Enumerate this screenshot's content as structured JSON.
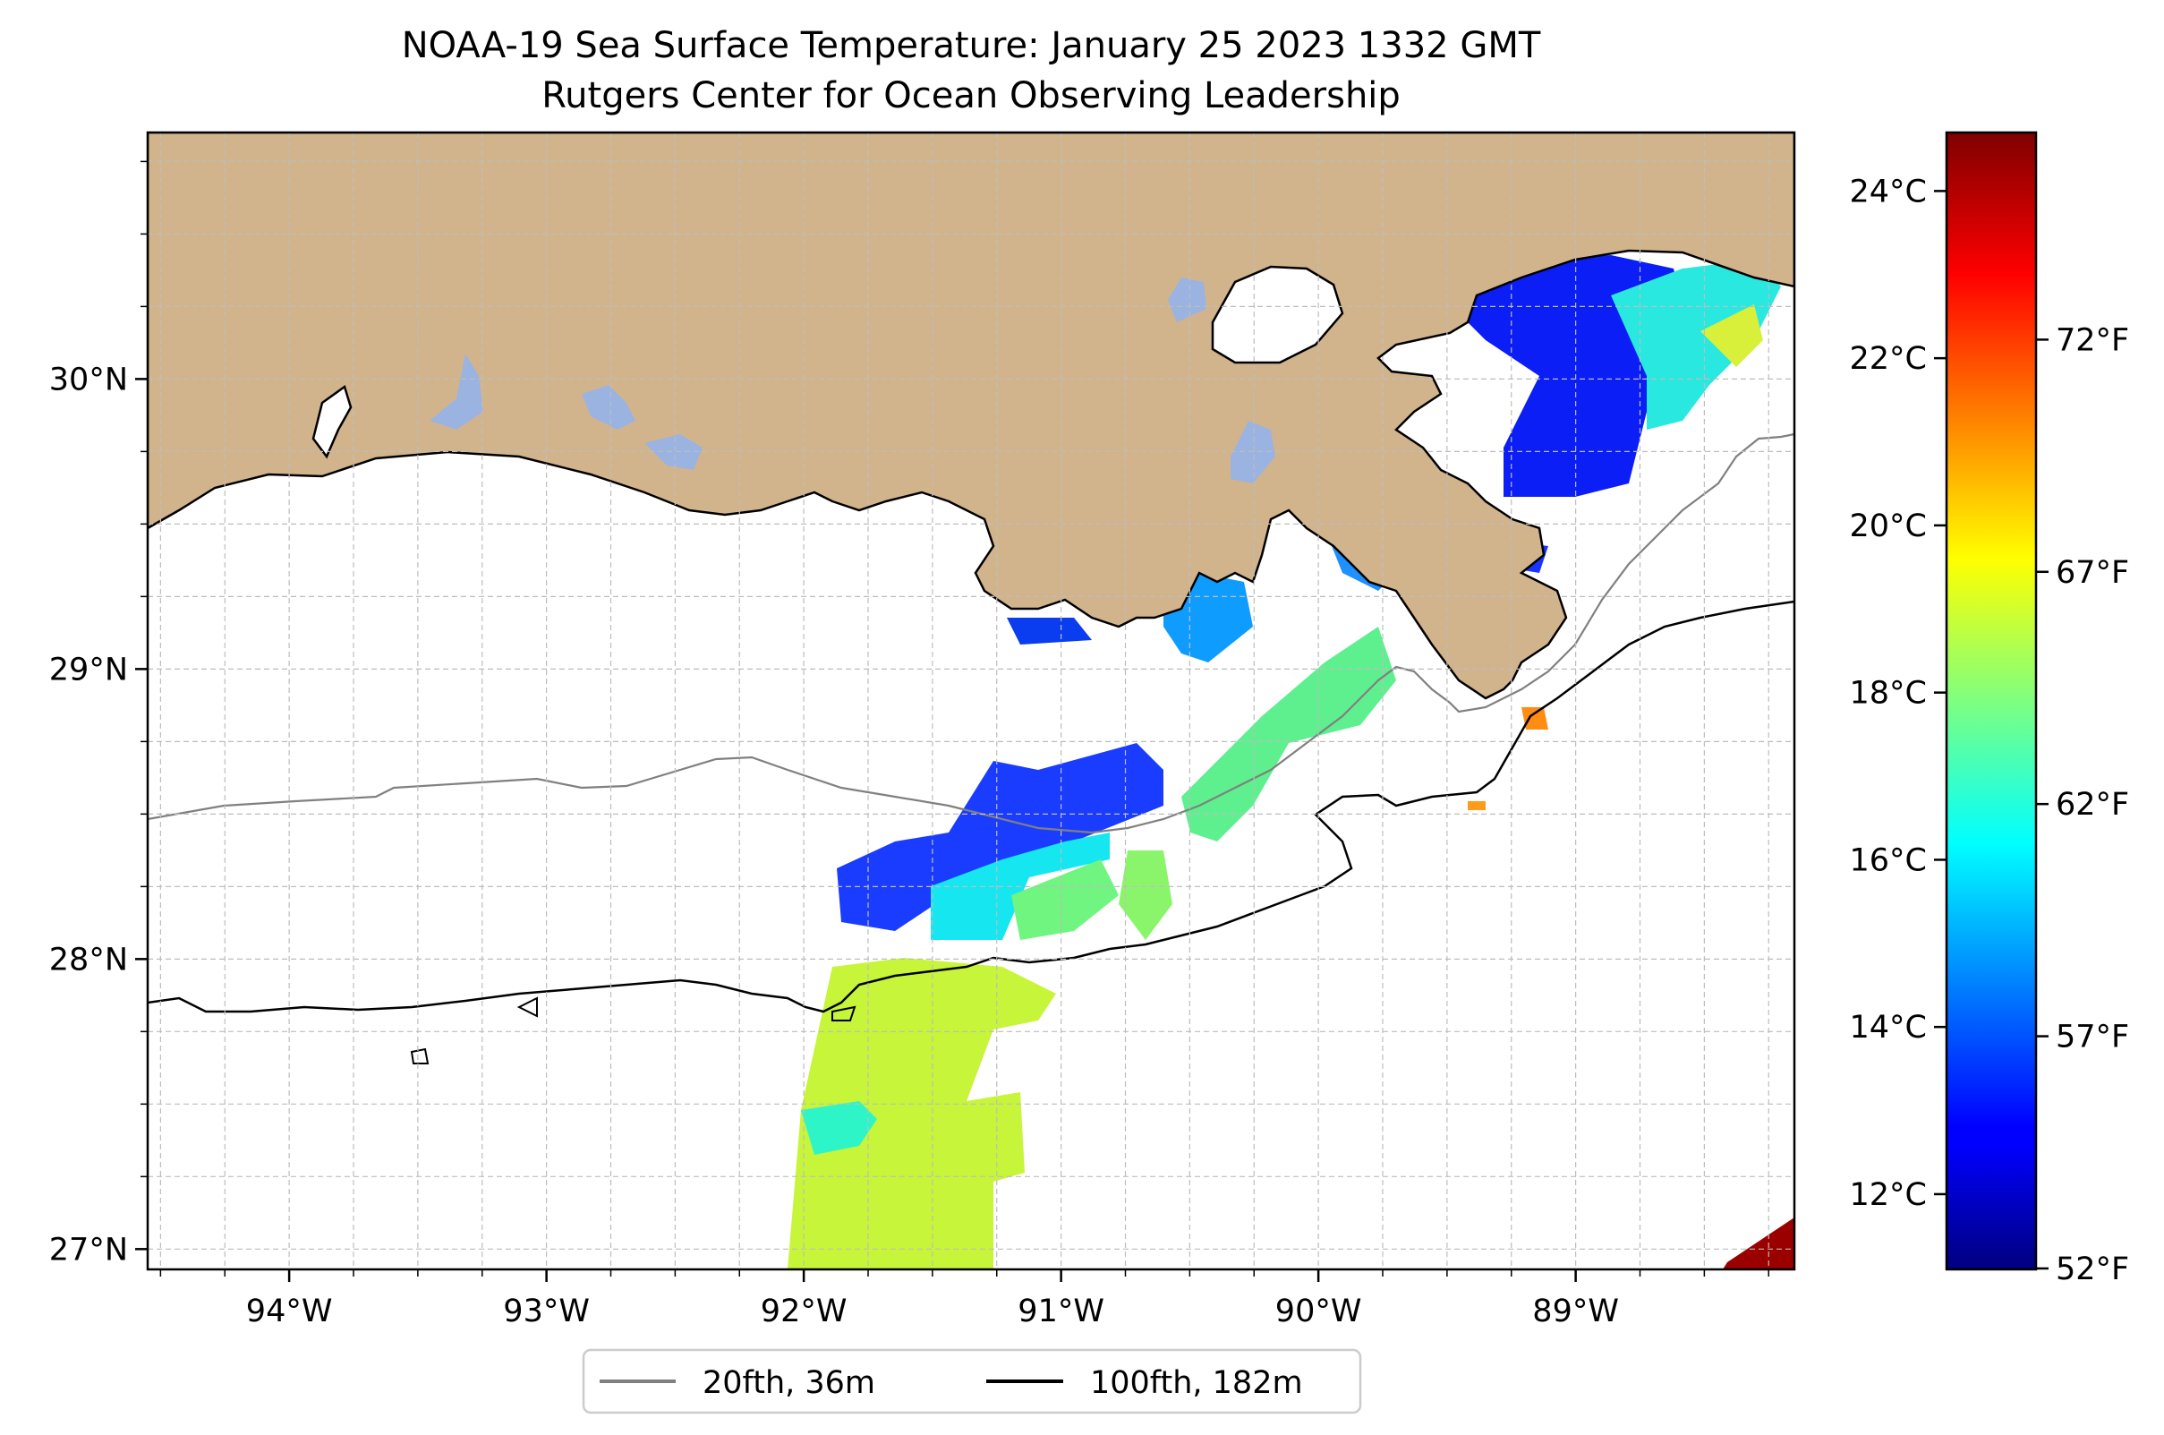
{
  "title": {
    "line1": "NOAA-19 Sea Surface Temperature: January 25 2023 1332 GMT",
    "line2": "Rutgers Center for Ocean Observing Leadership"
  },
  "map": {
    "lon_range": [
      -94.55,
      -88.15
    ],
    "lat_range": [
      26.93,
      30.85
    ],
    "lon_ticks": [
      {
        "value": -94,
        "label": "94°W"
      },
      {
        "value": -93,
        "label": "93°W"
      },
      {
        "value": -92,
        "label": "92°W"
      },
      {
        "value": -91,
        "label": "91°W"
      },
      {
        "value": -90,
        "label": "90°W"
      },
      {
        "value": -89,
        "label": "89°W"
      }
    ],
    "lat_ticks": [
      {
        "value": 30,
        "label": "30°N"
      },
      {
        "value": 29,
        "label": "29°N"
      },
      {
        "value": 28,
        "label": "28°N"
      },
      {
        "value": 27,
        "label": "27°N"
      }
    ],
    "gridlines": true,
    "colors": {
      "land": "#d2b48c",
      "lakes": "#9ab3e0",
      "ocean": "#ffffff",
      "gridline": "#bdbdbd"
    }
  },
  "legend": {
    "placement": "bottom-center",
    "items": [
      {
        "label": "20fth, 36m",
        "color": "#808080"
      },
      {
        "label": "100fth, 182m",
        "color": "#000000"
      }
    ]
  },
  "colorbar": {
    "colormap": "jet",
    "celsius_range": [
      11.1,
      24.7
    ],
    "celsius_ticks": [
      {
        "value": 24,
        "label": "24°C"
      },
      {
        "value": 22,
        "label": "22°C"
      },
      {
        "value": 20,
        "label": "20°C"
      },
      {
        "value": 18,
        "label": "18°C"
      },
      {
        "value": 16,
        "label": "16°C"
      },
      {
        "value": 14,
        "label": "14°C"
      },
      {
        "value": 12,
        "label": "12°C"
      }
    ],
    "fahrenheit_ticks": [
      {
        "value": 72,
        "label": "72°F"
      },
      {
        "value": 67,
        "label": "67°F"
      },
      {
        "value": 62,
        "label": "62°F"
      },
      {
        "value": 57,
        "label": "57°F"
      },
      {
        "value": 52,
        "label": "52°F"
      }
    ]
  }
}
